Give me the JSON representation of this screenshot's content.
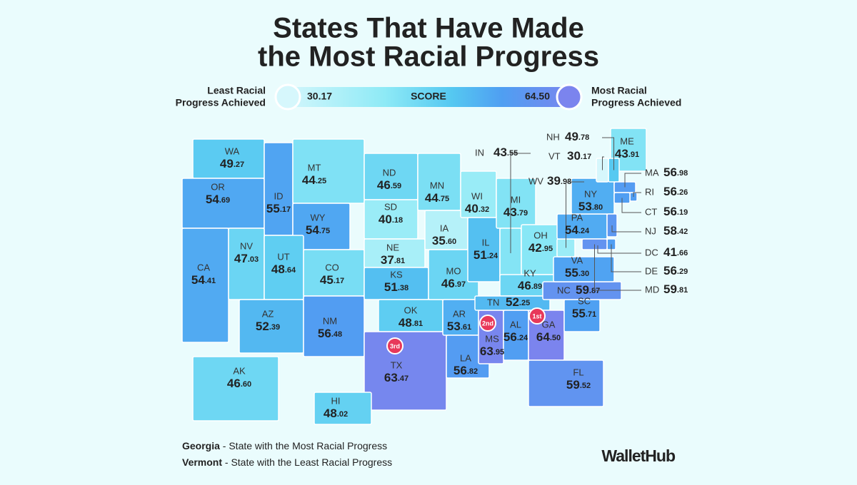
{
  "chart_data": {
    "type": "choropleth",
    "title": [
      "States That Have Made",
      "the Most Racial Progress"
    ],
    "legend": {
      "low_label": [
        "Least Racial",
        "Progress Achieved"
      ],
      "high_label": [
        "Most Racial",
        "Progress Achieved"
      ],
      "center_label": "SCORE",
      "min": 30.17,
      "max": {
        "value": 64.5,
        "label": "64.50"
      }
    },
    "categories": [
      "WA",
      "OR",
      "CA",
      "ID",
      "NV",
      "MT",
      "WY",
      "UT",
      "AZ",
      "CO",
      "NM",
      "ND",
      "SD",
      "NE",
      "KS",
      "OK",
      "TX",
      "MN",
      "IA",
      "MO",
      "AR",
      "LA",
      "WI",
      "IL",
      "MS",
      "MI",
      "IN",
      "OH",
      "KY",
      "TN",
      "AL",
      "GA",
      "FL",
      "SC",
      "NC",
      "VA",
      "WV",
      "PA",
      "NY",
      "ME",
      "NH",
      "VT",
      "MA",
      "RI",
      "CT",
      "NJ",
      "DC",
      "DE",
      "MD",
      "AK",
      "HI"
    ],
    "values": [
      49.27,
      54.69,
      54.41,
      55.17,
      47.03,
      44.25,
      54.75,
      48.64,
      52.39,
      45.17,
      56.48,
      46.59,
      40.18,
      37.81,
      51.38,
      48.81,
      63.47,
      44.75,
      35.6,
      46.97,
      53.61,
      56.82,
      40.32,
      51.24,
      63.95,
      43.79,
      43.55,
      42.95,
      46.89,
      52.25,
      56.24,
      64.5,
      59.52,
      55.71,
      59.87,
      55.3,
      39.98,
      54.24,
      53.8,
      43.91,
      49.78,
      30.17,
      56.98,
      56.26,
      56.19,
      58.42,
      41.66,
      56.29,
      59.81,
      46.6,
      48.02
    ],
    "value_labels": [
      "49.27",
      "54.69",
      "54.41",
      "55.17",
      "47.03",
      "44.25",
      "54.75",
      "48.64",
      "52.39",
      "45.17",
      "56.48",
      "46.59",
      "40.18",
      "37.81",
      "51.38",
      "48.81",
      "63.47",
      "44.75",
      "35.60",
      "46.97",
      "53.61",
      "56.82",
      "40.32",
      "51.24",
      "63.95",
      "43.79",
      "43.55",
      "42.95",
      "46.89",
      "52.25",
      "56.24",
      "64.50",
      "59.52",
      "55.71",
      "59.87",
      "55.30",
      "39.98",
      "54.24",
      "53.80",
      "43.91",
      "49.78",
      "30.17",
      "56.98",
      "56.26",
      "56.19",
      "58.42",
      "41.66",
      "56.29",
      "59.81",
      "46.60",
      "48.02"
    ],
    "rank_labels": [
      null,
      null,
      null,
      null,
      null,
      null,
      null,
      null,
      null,
      null,
      null,
      null,
      null,
      null,
      null,
      null,
      "3rd",
      null,
      null,
      null,
      null,
      null,
      null,
      null,
      "2nd",
      null,
      null,
      null,
      null,
      null,
      null,
      "1st",
      null,
      null,
      null,
      null,
      null,
      null,
      null,
      null,
      null,
      null,
      null,
      null,
      null,
      null,
      null,
      null,
      null,
      null,
      null
    ],
    "notes": [
      {
        "state": "Georgia",
        "text": "- State with the Most Racial Progress"
      },
      {
        "state": "Vermont",
        "text": "- State with the Least Racial Progress"
      }
    ],
    "brand": "WalletHub"
  }
}
